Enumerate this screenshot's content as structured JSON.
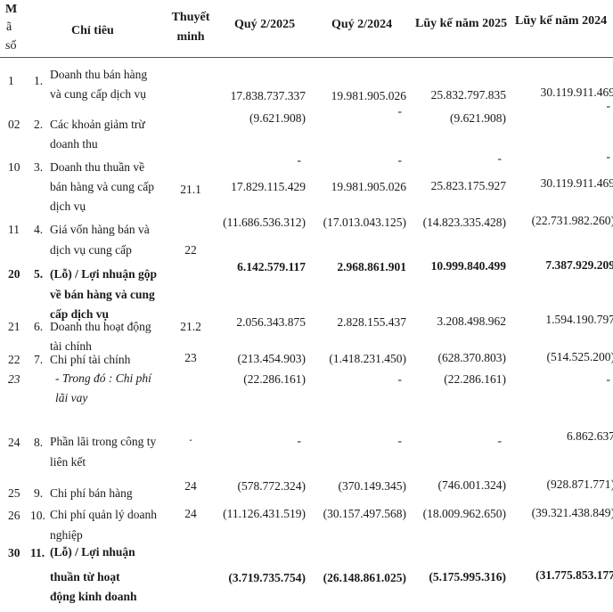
{
  "header": {
    "code_label": [
      "M",
      "ã",
      "số"
    ],
    "item": "Chỉ tiêu",
    "note": [
      "Thuyết",
      "minh"
    ],
    "q2_2025": "Quý 2/2025",
    "q2_2024": "Quý  2/2024",
    "ytd_2025": "Lũy kế năm 2025",
    "ytd_2024": "Lũy kế năm 2024"
  },
  "rows": [
    {
      "code": "1",
      "num": "1.",
      "label": [
        "Doanh thu bán hàng",
        "và cung cấp dịch vụ"
      ],
      "note": "",
      "values": [
        "17.838.737.337",
        "19.981.905.026",
        "25.832.797.835",
        "30.119.911.469"
      ],
      "bold": false,
      "italic": false
    },
    {
      "code": "02",
      "num": "2.",
      "label": [
        "Các khoản giảm trừ",
        "doanh thu"
      ],
      "note": "",
      "values": [
        "(9.621.908)",
        "-",
        "(9.621.908)",
        "-"
      ],
      "bold": false,
      "italic": false
    },
    {
      "code": "10",
      "num": "3.",
      "label": [
        "Doanh thu thuần về",
        "bán hàng và cung cấp",
        "dịch vụ"
      ],
      "note": "21.1",
      "values": [
        "17.829.115.429",
        "19.981.905.026",
        "25.823.175.927",
        "30.119.911.469"
      ],
      "dashes": [
        "-",
        "-",
        "-",
        "-"
      ],
      "bold": false,
      "italic": false
    },
    {
      "code": "11",
      "num": "4.",
      "label": [
        "Giá vốn hàng bán và",
        "dịch vụ cung cấp"
      ],
      "note": "22",
      "values": [
        "(11.686.536.312)",
        "(17.013.043.125)",
        "(14.823.335.428)",
        "(22.731.982.260)"
      ],
      "bold": false,
      "italic": false
    },
    {
      "code": "20",
      "num": "5.",
      "label": [
        "(Lỗ) / Lợi nhuận gộp",
        "về bán hàng và cung",
        "cấp dịch vụ"
      ],
      "note": "",
      "values": [
        "6.142.579.117",
        "2.968.861.901",
        "10.999.840.499",
        "7.387.929.209"
      ],
      "bold": true,
      "italic": false
    },
    {
      "code": "21",
      "num": "6.",
      "label": [
        "Doanh thu hoạt động",
        "tài chính"
      ],
      "note": "21.2",
      "values": [
        "2.056.343.875",
        "2.828.155.437",
        "3.208.498.962",
        "1.594.190.797"
      ],
      "bold": false,
      "italic": false
    },
    {
      "code": "22",
      "num": "7.",
      "label": [
        "Chi phí tài chính"
      ],
      "note": "23",
      "values": [
        "(213.454.903)",
        "(1.418.231.450)",
        "(628.370.803)",
        "(514.525.200)"
      ],
      "bold": false,
      "italic": false
    },
    {
      "code": "23",
      "num": "",
      "label": [
        "- Trong đó : Chi phí",
        "lãi vay"
      ],
      "note": "",
      "values": [
        "(22.286.161)",
        "-",
        "(22.286.161)",
        "-"
      ],
      "bold": false,
      "italic": true
    },
    {
      "code": "24",
      "num": "8.",
      "label": [
        "Phần lãi trong công ty",
        "liên kết"
      ],
      "note": ".",
      "values": [
        "-",
        "-",
        "-",
        "6.862.637"
      ],
      "bold": false,
      "italic": false
    },
    {
      "code": "25",
      "num": "9.",
      "label": [
        "Chi phí bán hàng"
      ],
      "note": "24",
      "values": [
        "(578.772.324)",
        "(370.149.345)",
        "(746.001.324)",
        "(928.871.771)"
      ],
      "bold": false,
      "italic": false
    },
    {
      "code": "26",
      "num": "10.",
      "label": [
        "Chi phí quản lý doanh",
        "nghiệp"
      ],
      "note": "24",
      "values": [
        "(11.126.431.519)",
        "(30.157.497.568)",
        "(18.009.962.650)",
        "(39.321.438.849)"
      ],
      "bold": false,
      "italic": false
    },
    {
      "code": "30",
      "num": "11.",
      "label": [
        "(Lỗ) / Lợi nhuận",
        "thuần từ hoạt",
        "động kinh doanh"
      ],
      "note": "",
      "values": [
        "(3.719.735.754)",
        "(26.148.861.025)",
        "(5.175.995.316)",
        "(31.775.853.177"
      ],
      "bold": true,
      "italic": false
    }
  ]
}
